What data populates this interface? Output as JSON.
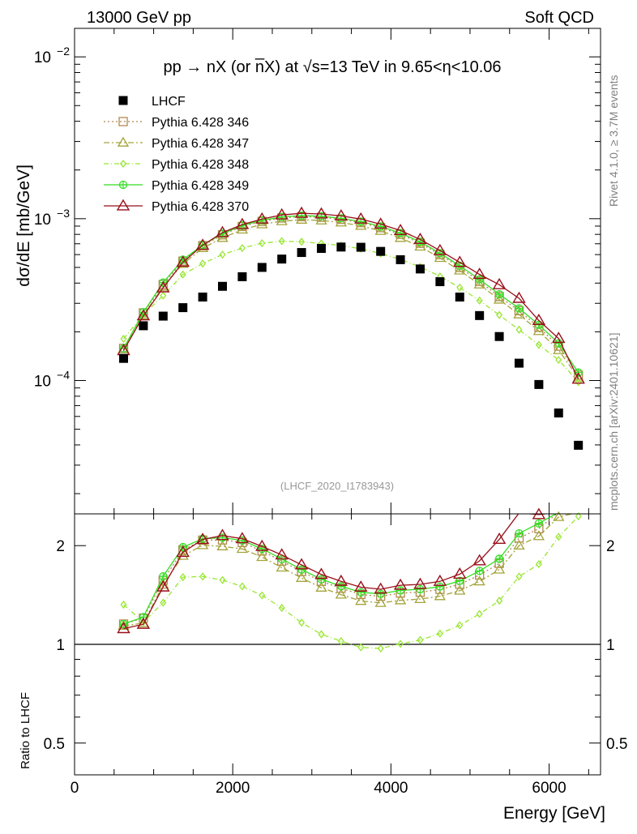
{
  "header": {
    "left": "13000 GeV pp",
    "right": "Soft QCD"
  },
  "side": {
    "rivet": "Rivet 4.1.0, ≥ 3.7M events",
    "mcplots": "mcplots.cern.ch [arXiv:2401.10621]"
  },
  "chart_data": {
    "type": "scatter",
    "title": "pp → nX (or n̅X) at √s=13 TeV in 9.65<η<10.06",
    "analysis_id": "(LHCF_2020_I1783943)",
    "xlabel": "Energy [GeV]",
    "ylabel_main": "dσ/dE [mb/GeV]",
    "ylabel_ratio": "Ratio to LHCF",
    "x_range": [
      0,
      6650
    ],
    "y_range_main": [
      1.5e-05,
      0.015
    ],
    "y_range_ratio": [
      0.4,
      2.5
    ],
    "x_ticks": [
      0,
      2000,
      4000,
      6000
    ],
    "x_tick_labels": [
      "0",
      "2000",
      "4000",
      "6000"
    ],
    "ratio_tick_labels": [
      {
        "value": 0.5,
        "label": "0.5"
      },
      {
        "value": 1,
        "label": "1"
      },
      {
        "value": 2,
        "label": "2"
      }
    ],
    "main_tick_labels": [
      {
        "base": "10",
        "exp": "−2",
        "value": 0.01
      },
      {
        "base": "10",
        "exp": "−3",
        "value": 0.001
      },
      {
        "base": "10",
        "exp": "−4",
        "value": 0.0001
      }
    ],
    "x": [
      620,
      870,
      1120,
      1370,
      1620,
      1870,
      2120,
      2370,
      2620,
      2870,
      3120,
      3370,
      3620,
      3870,
      4120,
      4370,
      4620,
      4870,
      5120,
      5370,
      5620,
      5870,
      6120,
      6370
    ],
    "data": {
      "name": "LHCF",
      "values": [
        0.000137,
        0.000218,
        0.00025,
        0.000282,
        0.000328,
        0.000382,
        0.000438,
        0.0005,
        0.000563,
        0.000618,
        0.000655,
        0.000668,
        0.000666,
        0.000628,
        0.000558,
        0.000489,
        0.000408,
        0.000328,
        0.000252,
        0.000187,
        0.000128,
        9.45e-05,
        6.3e-05,
        3.98e-05
      ]
    },
    "series": [
      {
        "name": "Pythia 6.428 346",
        "color": "#b08850",
        "dash": "2,3",
        "marker": "square",
        "values": [
          0.000158,
          0.000262,
          0.000392,
          0.000547,
          0.000682,
          0.000795,
          0.000895,
          0.000963,
          0.00101,
          0.00103,
          0.00102,
          0.00099,
          0.000945,
          0.00088,
          0.0008,
          0.000705,
          0.0006,
          0.0005,
          0.00041,
          0.00033,
          0.00027,
          0.000213,
          0.000163,
          0.000108
        ]
      },
      {
        "name": "Pythia 6.428 347",
        "color": "#a3a33a",
        "dash": "7,3,2,3",
        "marker": "triangle",
        "values": [
          0.000156,
          0.000253,
          0.00038,
          0.000525,
          0.000658,
          0.00076,
          0.000856,
          0.000923,
          0.000965,
          0.000985,
          0.000975,
          0.000947,
          0.000903,
          0.00084,
          0.00076,
          0.000672,
          0.000572,
          0.000478,
          0.000392,
          0.000316,
          0.000256,
          0.000202,
          0.000154,
          0.000104
        ]
      },
      {
        "name": "Pythia 6.428 348",
        "color": "#99e632",
        "dash": "6,3,1,3",
        "marker": "diamond",
        "values": [
          0.000181,
          0.000255,
          0.000335,
          0.000452,
          0.000528,
          0.0006,
          0.000658,
          0.000705,
          0.000727,
          0.00072,
          0.000703,
          0.000683,
          0.000652,
          0.00061,
          0.00056,
          0.000504,
          0.00044,
          0.000375,
          0.000312,
          0.000254,
          0.000206,
          0.000166,
          0.000134,
          9.78e-05
        ]
      },
      {
        "name": "Pythia 6.428 349",
        "color": "#33dd22",
        "dash": "",
        "marker": "circleplus",
        "values": [
          0.000158,
          0.000264,
          0.000403,
          0.000558,
          0.000688,
          0.000808,
          0.000908,
          0.000978,
          0.001025,
          0.001045,
          0.001035,
          0.001005,
          0.00096,
          0.000895,
          0.000815,
          0.00072,
          0.000612,
          0.000512,
          0.000422,
          0.000341,
          0.000279,
          0.000221,
          0.00017,
          0.000112
        ]
      },
      {
        "name": "Pythia 6.428 370",
        "color": "#990f1a",
        "dash": "",
        "marker": "bigtriangle",
        "values": [
          0.000153,
          0.000251,
          0.000374,
          0.000538,
          0.000685,
          0.00082,
          0.00092,
          0.000995,
          0.001055,
          0.00108,
          0.00107,
          0.00104,
          0.000995,
          0.000925,
          0.000845,
          0.000745,
          0.000635,
          0.000537,
          0.000453,
          0.000391,
          0.000322,
          0.000235,
          0.000182,
          0.000102
        ]
      }
    ],
    "legend_position": "top-left",
    "reference_line_ratio": 1
  }
}
